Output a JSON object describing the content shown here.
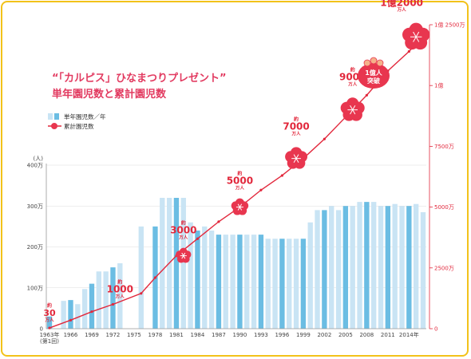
{
  "title_line1": "“「カルピス」ひなまつりプレゼント”",
  "title_line2": "単年園児数と累計園児数",
  "legend": {
    "annual": "単年園児数／年",
    "cumulative": "累計園児数"
  },
  "milestone_badge": [
    "1億人",
    "突破"
  ],
  "chart_data": {
    "type": "bar",
    "left_axis": {
      "unit": "(人)",
      "ticks": [
        0,
        100,
        200,
        300,
        400
      ],
      "tick_labels": [
        "0",
        "100万",
        "200万",
        "300万",
        "400万"
      ],
      "ylim": [
        0,
        400
      ]
    },
    "right_axis": {
      "ticks": [
        0,
        2500,
        5000,
        7500,
        10000,
        12500
      ],
      "tick_labels": [
        "0",
        "2500万",
        "5000万",
        "7500万",
        "1億",
        "1億 2500万"
      ],
      "ylim": [
        0,
        12500
      ]
    },
    "x_tick_labels": [
      {
        "year": 1963,
        "label": "1963年",
        "sub": "(第1回)"
      },
      {
        "year": 1966,
        "label": "1966"
      },
      {
        "year": 1969,
        "label": "1969"
      },
      {
        "year": 1972,
        "label": "1972"
      },
      {
        "year": 1975,
        "label": "1975"
      },
      {
        "year": 1978,
        "label": "1978"
      },
      {
        "year": 1981,
        "label": "1981"
      },
      {
        "year": 1984,
        "label": "1984"
      },
      {
        "year": 1987,
        "label": "1987"
      },
      {
        "year": 1990,
        "label": "1990"
      },
      {
        "year": 1993,
        "label": "1993"
      },
      {
        "year": 1996,
        "label": "1996"
      },
      {
        "year": 1999,
        "label": "1999"
      },
      {
        "year": 2002,
        "label": "2002"
      },
      {
        "year": 2005,
        "label": "2005"
      },
      {
        "year": 2008,
        "label": "2008"
      },
      {
        "year": 2011,
        "label": "2011"
      },
      {
        "year": 2014,
        "label": "2014年"
      }
    ],
    "series": [
      {
        "name": "単年園児数／年",
        "unit": "万人",
        "years": [
          1963,
          1964,
          1965,
          1966,
          1967,
          1968,
          1969,
          1970,
          1971,
          1972,
          1973,
          1974,
          1975,
          1976,
          1977,
          1978,
          1979,
          1980,
          1981,
          1982,
          1983,
          1984,
          1985,
          1986,
          1987,
          1988,
          1989,
          1990,
          1991,
          1992,
          1993,
          1994,
          1995,
          1996,
          1997,
          1998,
          1999,
          2000,
          2001,
          2002,
          2003,
          2004,
          2005,
          2006,
          2007,
          2008,
          2009,
          2010,
          2011,
          2012,
          2013,
          2014,
          2015,
          2016
        ],
        "values": [
          30,
          0,
          68,
          70,
          60,
          97,
          110,
          140,
          140,
          150,
          160,
          0,
          0,
          250,
          0,
          250,
          320,
          320,
          320,
          320,
          260,
          240,
          250,
          240,
          230,
          230,
          230,
          230,
          230,
          230,
          230,
          220,
          220,
          220,
          220,
          220,
          220,
          260,
          290,
          290,
          300,
          290,
          300,
          300,
          310,
          310,
          310,
          300,
          300,
          305,
          300,
          300,
          305,
          285
        ]
      },
      {
        "name": "累計園児数",
        "unit": "万人",
        "years": [
          1963,
          1966,
          1969,
          1972,
          1976,
          1978,
          1981,
          1984,
          1987,
          1990,
          1993,
          1996,
          1999,
          2002,
          2005,
          2008,
          2011,
          2014,
          2016
        ],
        "values": [
          30,
          350,
          700,
          1000,
          1450,
          2100,
          3000,
          3700,
          4400,
          5000,
          5700,
          6300,
          7000,
          7800,
          8700,
          9600,
          10600,
          11400,
          12000
        ]
      }
    ],
    "annotations": [
      {
        "approx": "約",
        "value": "30",
        "unit": "万人",
        "year": 1963,
        "cum": 30
      },
      {
        "approx": "約",
        "value": "1000",
        "unit": "万人",
        "year": 1973,
        "cum": 1000
      },
      {
        "approx": "約",
        "value": "3000",
        "unit": "万人",
        "year": 1982,
        "cum": 3000
      },
      {
        "approx": "約",
        "value": "5000",
        "unit": "万人",
        "year": 1990,
        "cum": 5000
      },
      {
        "approx": "約",
        "value": "7000",
        "unit": "万人",
        "year": 1998,
        "cum": 7000
      },
      {
        "approx": "約",
        "value": "9000",
        "unit": "万人",
        "year": 2006,
        "cum": 9000
      },
      {
        "approx": "",
        "value": "1億2000",
        "unit": "万人",
        "year": 2015,
        "cum": 12000
      }
    ],
    "colors": {
      "bar_light": "#c9e4f4",
      "bar_dark": "#6bbde3",
      "line": "#e2283c",
      "flower": "#e8364f",
      "axis": "#999999",
      "grid": "#dddddd"
    }
  }
}
